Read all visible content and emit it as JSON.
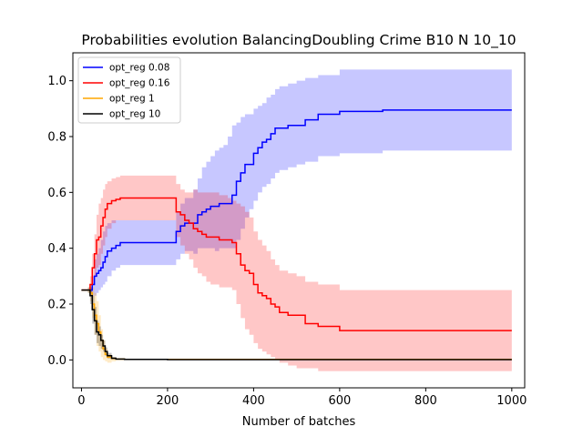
{
  "chart_data": {
    "type": "line",
    "title": "Probabilities evolution BalancingDoubling Crime B10 N 10_10",
    "xlabel": "Number of batches",
    "ylabel": "",
    "xlim": [
      -20,
      1030
    ],
    "ylim": [
      -0.1,
      1.1
    ],
    "xticks": [
      0,
      200,
      400,
      600,
      800,
      1000
    ],
    "yticks": [
      0.0,
      0.2,
      0.4,
      0.6,
      0.8,
      1.0
    ],
    "xtick_labels": [
      "0",
      "200",
      "400",
      "600",
      "800",
      "1000"
    ],
    "ytick_labels": [
      "0.0",
      "0.2",
      "0.4",
      "0.6",
      "0.8",
      "1.0"
    ],
    "grid": false,
    "legend_position": "top-left",
    "series": [
      {
        "name": "opt_reg 0.08",
        "color": "#0000ff",
        "band_color": "#0000ff",
        "x": [
          0,
          10,
          20,
          25,
          30,
          35,
          40,
          45,
          50,
          55,
          60,
          70,
          80,
          90,
          100,
          150,
          200,
          220,
          230,
          240,
          260,
          270,
          280,
          290,
          300,
          310,
          320,
          330,
          340,
          350,
          360,
          370,
          380,
          390,
          400,
          410,
          420,
          430,
          440,
          450,
          460,
          480,
          500,
          520,
          550,
          600,
          700,
          800,
          900,
          1000
        ],
        "y": [
          0.25,
          0.25,
          0.25,
          0.27,
          0.3,
          0.31,
          0.32,
          0.33,
          0.35,
          0.37,
          0.39,
          0.4,
          0.41,
          0.42,
          0.42,
          0.42,
          0.42,
          0.46,
          0.48,
          0.49,
          0.49,
          0.52,
          0.53,
          0.54,
          0.55,
          0.55,
          0.56,
          0.56,
          0.56,
          0.59,
          0.64,
          0.67,
          0.7,
          0.7,
          0.74,
          0.76,
          0.78,
          0.79,
          0.81,
          0.83,
          0.83,
          0.84,
          0.84,
          0.86,
          0.88,
          0.89,
          0.895,
          0.895,
          0.895,
          0.895
        ],
        "upper": [
          0.25,
          0.25,
          0.26,
          0.3,
          0.36,
          0.38,
          0.4,
          0.43,
          0.46,
          0.48,
          0.49,
          0.5,
          0.5,
          0.5,
          0.5,
          0.5,
          0.5,
          0.53,
          0.56,
          0.58,
          0.61,
          0.65,
          0.69,
          0.71,
          0.73,
          0.75,
          0.76,
          0.77,
          0.8,
          0.84,
          0.85,
          0.87,
          0.88,
          0.88,
          0.9,
          0.91,
          0.92,
          0.94,
          0.95,
          0.97,
          0.98,
          0.99,
          1.0,
          1.01,
          1.02,
          1.04,
          1.04,
          1.04,
          1.04,
          1.04
        ],
        "lower": [
          0.25,
          0.25,
          0.24,
          0.23,
          0.23,
          0.24,
          0.25,
          0.26,
          0.27,
          0.28,
          0.3,
          0.32,
          0.33,
          0.34,
          0.34,
          0.34,
          0.34,
          0.36,
          0.38,
          0.39,
          0.38,
          0.4,
          0.4,
          0.4,
          0.4,
          0.39,
          0.4,
          0.4,
          0.4,
          0.4,
          0.43,
          0.47,
          0.51,
          0.54,
          0.57,
          0.6,
          0.62,
          0.63,
          0.65,
          0.67,
          0.68,
          0.69,
          0.7,
          0.71,
          0.73,
          0.74,
          0.75,
          0.75,
          0.75,
          0.75
        ]
      },
      {
        "name": "opt_reg 0.16",
        "color": "#ff0000",
        "band_color": "#ff0000",
        "x": [
          0,
          10,
          20,
          25,
          30,
          35,
          40,
          45,
          50,
          55,
          60,
          70,
          80,
          90,
          100,
          150,
          200,
          220,
          230,
          240,
          250,
          260,
          270,
          280,
          290,
          300,
          320,
          340,
          350,
          360,
          370,
          380,
          390,
          400,
          410,
          420,
          430,
          440,
          450,
          460,
          480,
          500,
          520,
          550,
          600,
          700,
          800,
          900,
          1000
        ],
        "y": [
          0.25,
          0.25,
          0.27,
          0.33,
          0.38,
          0.43,
          0.44,
          0.48,
          0.51,
          0.54,
          0.56,
          0.57,
          0.575,
          0.58,
          0.58,
          0.58,
          0.58,
          0.53,
          0.52,
          0.5,
          0.49,
          0.47,
          0.46,
          0.45,
          0.44,
          0.44,
          0.43,
          0.43,
          0.42,
          0.38,
          0.34,
          0.32,
          0.31,
          0.27,
          0.24,
          0.23,
          0.22,
          0.2,
          0.19,
          0.17,
          0.16,
          0.16,
          0.13,
          0.12,
          0.105,
          0.105,
          0.105,
          0.105,
          0.105
        ],
        "upper": [
          0.25,
          0.25,
          0.3,
          0.38,
          0.45,
          0.52,
          0.56,
          0.58,
          0.61,
          0.63,
          0.64,
          0.65,
          0.655,
          0.66,
          0.66,
          0.66,
          0.66,
          0.63,
          0.61,
          0.6,
          0.6,
          0.61,
          0.6,
          0.6,
          0.6,
          0.6,
          0.59,
          0.58,
          0.57,
          0.56,
          0.55,
          0.53,
          0.51,
          0.46,
          0.43,
          0.41,
          0.39,
          0.36,
          0.34,
          0.32,
          0.31,
          0.3,
          0.28,
          0.27,
          0.25,
          0.25,
          0.25,
          0.25,
          0.25
        ],
        "lower": [
          0.25,
          0.25,
          0.24,
          0.27,
          0.3,
          0.33,
          0.34,
          0.38,
          0.41,
          0.44,
          0.47,
          0.49,
          0.5,
          0.5,
          0.5,
          0.5,
          0.5,
          0.44,
          0.41,
          0.38,
          0.36,
          0.33,
          0.31,
          0.3,
          0.28,
          0.27,
          0.26,
          0.26,
          0.25,
          0.2,
          0.15,
          0.11,
          0.09,
          0.06,
          0.04,
          0.03,
          0.02,
          0.01,
          0.0,
          -0.01,
          -0.02,
          -0.03,
          -0.03,
          -0.04,
          -0.04,
          -0.04,
          -0.04,
          -0.04,
          -0.04
        ]
      },
      {
        "name": "opt_reg 1",
        "color": "#ffa500",
        "band_color": "#ffa500",
        "x": [
          0,
          10,
          15,
          20,
          25,
          30,
          35,
          40,
          45,
          50,
          55,
          60,
          70,
          80,
          100,
          200,
          400,
          600,
          800,
          1000
        ],
        "y": [
          0.25,
          0.25,
          0.25,
          0.24,
          0.2,
          0.16,
          0.13,
          0.1,
          0.07,
          0.04,
          0.02,
          0.01,
          0.005,
          0.003,
          0.002,
          0.002,
          0.002,
          0.002,
          0.002,
          0.002
        ],
        "upper": [
          0.25,
          0.25,
          0.26,
          0.27,
          0.26,
          0.24,
          0.21,
          0.16,
          0.11,
          0.07,
          0.04,
          0.02,
          0.01,
          0.006,
          0.004,
          0.004,
          0.004,
          0.004,
          0.004,
          0.004
        ],
        "lower": [
          0.25,
          0.25,
          0.24,
          0.21,
          0.15,
          0.09,
          0.05,
          0.03,
          0.01,
          0.0,
          -0.005,
          -0.01,
          -0.005,
          0.0,
          0.0,
          0.0,
          0.0,
          0.0,
          0.0,
          0.0
        ]
      },
      {
        "name": "opt_reg 10",
        "color": "#000000",
        "band_color": "#000000",
        "x": [
          0,
          10,
          15,
          20,
          25,
          30,
          35,
          40,
          45,
          50,
          55,
          60,
          70,
          80,
          100,
          200,
          400,
          600,
          800,
          1000
        ],
        "y": [
          0.25,
          0.25,
          0.25,
          0.23,
          0.18,
          0.14,
          0.1,
          0.09,
          0.07,
          0.05,
          0.03,
          0.015,
          0.006,
          0.003,
          0.002,
          0.001,
          0.001,
          0.001,
          0.001,
          0.001
        ],
        "upper": [
          0.25,
          0.25,
          0.26,
          0.26,
          0.23,
          0.19,
          0.14,
          0.12,
          0.09,
          0.07,
          0.045,
          0.025,
          0.01,
          0.005,
          0.003,
          0.002,
          0.002,
          0.002,
          0.002,
          0.002
        ],
        "lower": [
          0.25,
          0.25,
          0.24,
          0.2,
          0.13,
          0.09,
          0.06,
          0.05,
          0.04,
          0.03,
          0.015,
          0.005,
          0.002,
          0.0,
          0.0,
          0.0,
          0.0,
          0.0,
          0.0,
          0.0
        ]
      }
    ]
  }
}
